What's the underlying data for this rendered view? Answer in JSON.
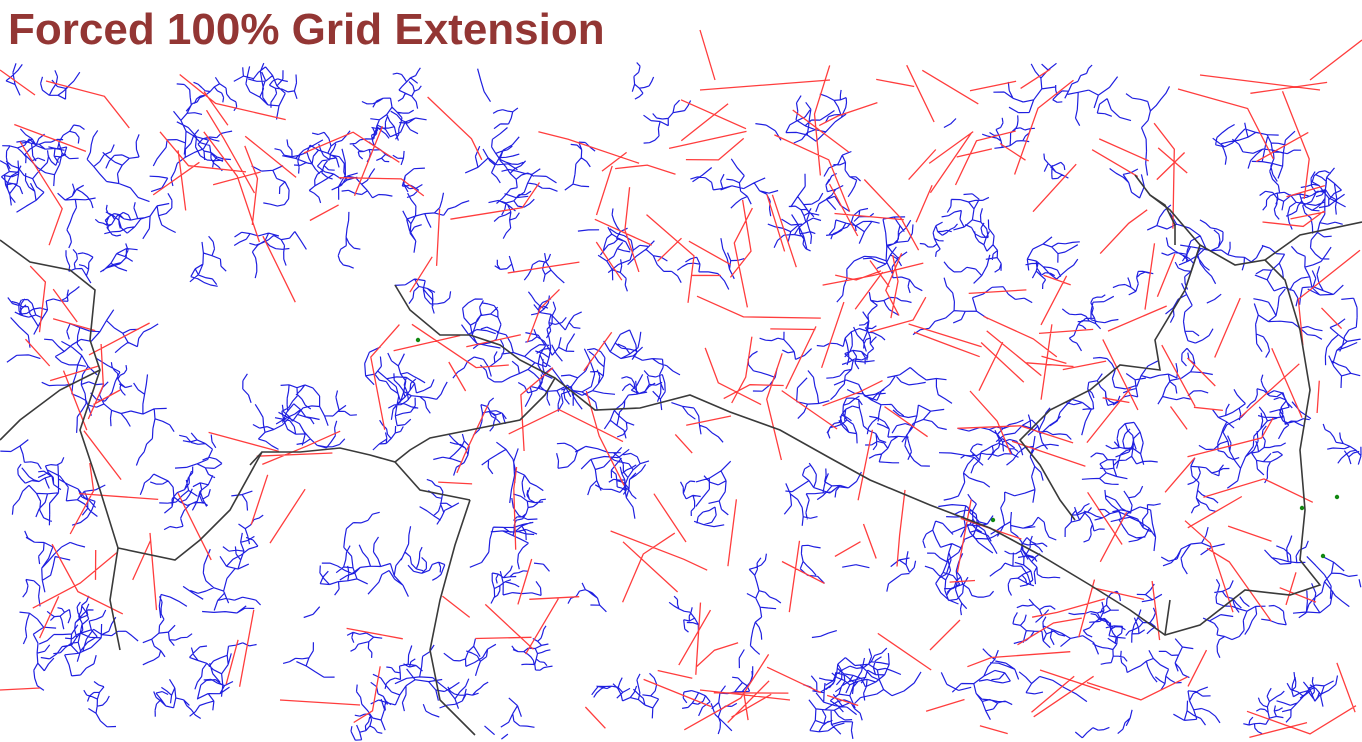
{
  "title": "Forced 100% Grid Extension",
  "colors": {
    "title": "#933634",
    "background": "#ffffff",
    "low_voltage_lines": "#1f1fe0",
    "medium_voltage_lines": "#ff3d3d",
    "existing_grid": "#3a3a3a",
    "unconnected_points": "#118811"
  },
  "legend": null
}
